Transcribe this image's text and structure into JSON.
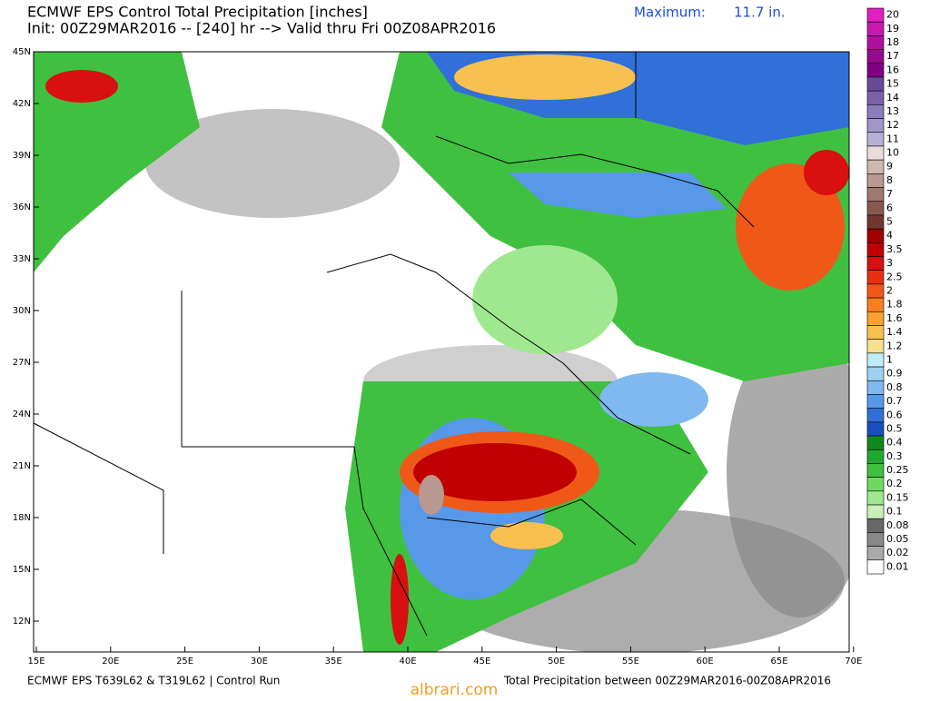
{
  "header": {
    "title": "ECMWF EPS Control Total Precipitation [inches]",
    "subtitle": "Init: 00Z29MAR2016 -- [240] hr --> Valid thru Fri 00Z08APR2016",
    "maximum_label": "Maximum:",
    "maximum_value": "11.7 in."
  },
  "map": {
    "lat_labels": [
      "45N",
      "42N",
      "39N",
      "36N",
      "33N",
      "30N",
      "27N",
      "24N",
      "21N",
      "18N",
      "15N",
      "12N"
    ],
    "lon_labels": [
      "15E",
      "20E",
      "25E",
      "30E",
      "35E",
      "40E",
      "45E",
      "50E",
      "55E",
      "60E",
      "65E",
      "70E"
    ]
  },
  "colorbar": {
    "levels": [
      {
        "label": "20",
        "color": "#e020c0"
      },
      {
        "label": "19",
        "color": "#c818b0"
      },
      {
        "label": "18",
        "color": "#b010a0"
      },
      {
        "label": "17",
        "color": "#980890"
      },
      {
        "label": "16",
        "color": "#800080"
      },
      {
        "label": "15",
        "color": "#6a4a9a"
      },
      {
        "label": "14",
        "color": "#7a62aa"
      },
      {
        "label": "13",
        "color": "#8c7cba"
      },
      {
        "label": "12",
        "color": "#a096c8"
      },
      {
        "label": "11",
        "color": "#b8b0d8"
      },
      {
        "label": "10",
        "color": "#e8dcdc"
      },
      {
        "label": "9",
        "color": "#d0b8b0"
      },
      {
        "label": "8",
        "color": "#b89890"
      },
      {
        "label": "7",
        "color": "#a07870"
      },
      {
        "label": "6",
        "color": "#885850"
      },
      {
        "label": "5",
        "color": "#703830"
      },
      {
        "label": "4",
        "color": "#a00000"
      },
      {
        "label": "3.5",
        "color": "#c00000"
      },
      {
        "label": "3",
        "color": "#d81010"
      },
      {
        "label": "2.5",
        "color": "#e83010"
      },
      {
        "label": "2",
        "color": "#f05818"
      },
      {
        "label": "1.8",
        "color": "#f88020"
      },
      {
        "label": "1.6",
        "color": "#f8a030"
      },
      {
        "label": "1.4",
        "color": "#f8c050"
      },
      {
        "label": "1.2",
        "color": "#f8e090"
      },
      {
        "label": "1",
        "color": "#c0ecf8"
      },
      {
        "label": "0.9",
        "color": "#a0d0f0"
      },
      {
        "label": "0.8",
        "color": "#80b8f0"
      },
      {
        "label": "0.7",
        "color": "#5898e8"
      },
      {
        "label": "0.6",
        "color": "#3070d8"
      },
      {
        "label": "0.5",
        "color": "#1850c0"
      },
      {
        "label": "0.4",
        "color": "#108820"
      },
      {
        "label": "0.3",
        "color": "#20a830"
      },
      {
        "label": "0.25",
        "color": "#40c040"
      },
      {
        "label": "0.2",
        "color": "#70d860"
      },
      {
        "label": "0.15",
        "color": "#a0e890"
      },
      {
        "label": "0.1",
        "color": "#c8f0b8"
      },
      {
        "label": "0.08",
        "color": "#686868"
      },
      {
        "label": "0.05",
        "color": "#888888"
      },
      {
        "label": "0.02",
        "color": "#aaaaaa"
      },
      {
        "label": "0.01",
        "color": "#ffffff"
      }
    ]
  },
  "footer": {
    "left": "ECMWF EPS T639L62 & T319L62 | Control Run",
    "right": "Total Precipitation between 00Z29MAR2016-00Z08APR2016",
    "watermark": "albrari.com"
  }
}
